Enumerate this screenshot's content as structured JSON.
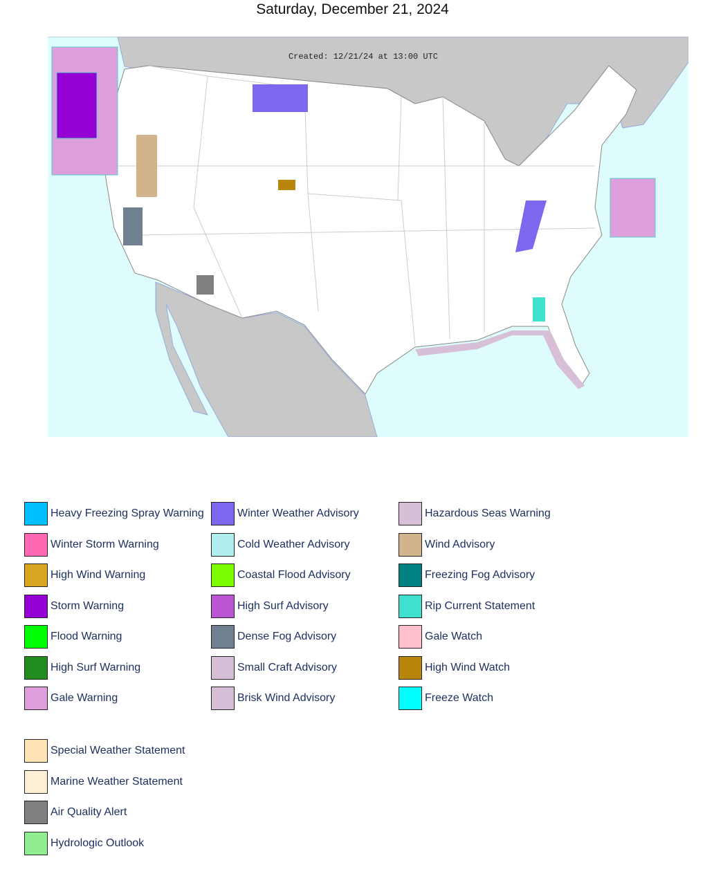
{
  "header": {
    "date": "Saturday, December 21, 2024"
  },
  "map": {
    "created": "Created: 12/21/24 at 13:00 UTC"
  },
  "legend": {
    "columns": [
      [
        {
          "label": "Heavy Freezing Spray Warning",
          "color": "#00BFFF"
        },
        {
          "label": "Winter Storm Warning",
          "color": "#FF69B4"
        },
        {
          "label": "High Wind Warning",
          "color": "#DAA520"
        },
        {
          "label": "Storm Warning",
          "color": "#9400D3"
        },
        {
          "label": "Flood Warning",
          "color": "#00FF00"
        },
        {
          "label": "High Surf Warning",
          "color": "#228B22"
        },
        {
          "label": "Gale Warning",
          "color": "#DDA0DD"
        }
      ],
      [
        {
          "label": "Winter Weather Advisory",
          "color": "#7B68EE"
        },
        {
          "label": "Cold Weather Advisory",
          "color": "#AFEEEE"
        },
        {
          "label": "Coastal Flood Advisory",
          "color": "#7CFC00"
        },
        {
          "label": "High Surf Advisory",
          "color": "#BA55D3"
        },
        {
          "label": "Dense Fog Advisory",
          "color": "#708090"
        },
        {
          "label": "Small Craft Advisory",
          "color": "#D8BFD8"
        },
        {
          "label": "Brisk Wind Advisory",
          "color": "#D8BFD8"
        }
      ],
      [
        {
          "label": "Hazardous Seas Warning",
          "color": "#D8BFD8"
        },
        {
          "label": "Wind Advisory",
          "color": "#D2B48C"
        },
        {
          "label": "Freezing Fog Advisory",
          "color": "#008080"
        },
        {
          "label": "Rip Current Statement",
          "color": "#40E0D0"
        },
        {
          "label": "Gale Watch",
          "color": "#FFC0CB"
        },
        {
          "label": "High Wind Watch",
          "color": "#B8860B"
        },
        {
          "label": "Freeze Watch",
          "color": "#00FFFF"
        }
      ]
    ],
    "extra": [
      {
        "label": "Special Weather Statement",
        "color": "#FFE4B5"
      },
      {
        "label": "Marine Weather Statement",
        "color": "#FFEFD5"
      },
      {
        "label": "Air Quality Alert",
        "color": "#808080"
      },
      {
        "label": "Hydrologic Outlook",
        "color": "#90EE90"
      }
    ]
  }
}
